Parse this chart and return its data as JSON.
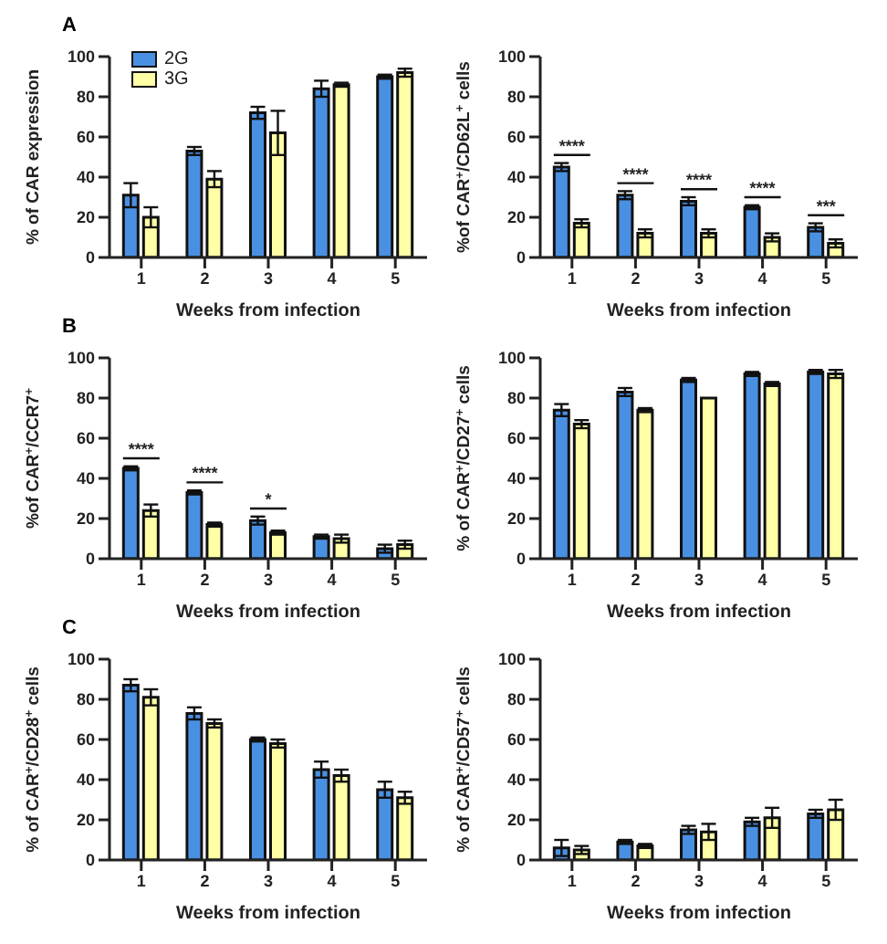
{
  "chart_data": [
    {
      "type": "bar",
      "annotations": [
        "A"
      ],
      "ylabel": "% of CAR expression",
      "xlabel": "Weeks from infection",
      "categories": [
        "1",
        "2",
        "3",
        "4",
        "5"
      ],
      "ylim": [
        0,
        100
      ],
      "yticks": [
        0,
        20,
        40,
        60,
        80,
        100
      ],
      "grid": false,
      "legend": "top left",
      "series": [
        {
          "name": "2G",
          "color": "#4a90e2",
          "values": [
            31,
            53,
            72,
            84,
            90
          ],
          "errors": [
            6,
            2,
            3,
            4,
            1
          ]
        },
        {
          "name": "3G",
          "color": "#ffffa6",
          "values": [
            20,
            39,
            62,
            86,
            92
          ],
          "errors": [
            5,
            4,
            11,
            1,
            2
          ]
        }
      ]
    },
    {
      "type": "bar",
      "annotations": [
        "****",
        "****",
        "****",
        "****",
        "***"
      ],
      "ylabel": "%of CAR$^{+}$/CD62L$^{+}$ cells",
      "xlabel": "Weeks from infection",
      "categories": [
        "1",
        "2",
        "3",
        "4",
        "5"
      ],
      "ylim": [
        0,
        100
      ],
      "yticks": [
        0,
        20,
        40,
        60,
        80,
        100
      ],
      "grid": false,
      "series": [
        {
          "color": "#4a90e2",
          "values": [
            45,
            31,
            28,
            25,
            15
          ],
          "errors": [
            2,
            2,
            2,
            1,
            2
          ]
        },
        {
          "color": "#ffffa6",
          "values": [
            17,
            12,
            12,
            10,
            7
          ],
          "errors": [
            2,
            2,
            2,
            2,
            2
          ]
        }
      ]
    },
    {
      "type": "bar",
      "annotations": [
        "B",
        "****",
        "****",
        "*"
      ],
      "ylabel": "%of CAR$^{+}$/CCR7$^{+}$",
      "xlabel": "Weeks from infection",
      "categories": [
        "1",
        "2",
        "3",
        "4",
        "5"
      ],
      "ylim": [
        0,
        100
      ],
      "yticks": [
        0,
        20,
        40,
        60,
        80,
        100
      ],
      "grid": false,
      "series": [
        {
          "color": "#4a90e2",
          "values": [
            45,
            33,
            19,
            11,
            5
          ],
          "errors": [
            1,
            1,
            2,
            1,
            2
          ]
        },
        {
          "color": "#ffffa6",
          "values": [
            24,
            17,
            13,
            10,
            7
          ],
          "errors": [
            3,
            1,
            1,
            2,
            2
          ]
        }
      ]
    },
    {
      "type": "bar",
      "ylabel": "% of CAR$^{+}$/CD27$^{+}$ cells",
      "xlabel": "Weeks from infection",
      "categories": [
        "1",
        "2",
        "3",
        "4",
        "5"
      ],
      "ylim": [
        0,
        100
      ],
      "yticks": [
        0,
        20,
        40,
        60,
        80,
        100
      ],
      "grid": false,
      "series": [
        {
          "color": "#4a90e2",
          "values": [
            74,
            83,
            89,
            92,
            93
          ],
          "errors": [
            3,
            2,
            1,
            1,
            1
          ]
        },
        {
          "color": "#ffffa6",
          "values": [
            67,
            74,
            80,
            87,
            92
          ],
          "errors": [
            2,
            1,
            null,
            1,
            2
          ]
        }
      ]
    },
    {
      "type": "bar",
      "annotations": [
        "C"
      ],
      "ylabel": "% of CAR$^{+}$/CD28$^{+}$ cells",
      "xlabel": "Weeks from infection",
      "categories": [
        "1",
        "2",
        "3",
        "4",
        "5"
      ],
      "ylim": [
        0,
        100
      ],
      "yticks": [
        0,
        20,
        40,
        60,
        80,
        100
      ],
      "grid": false,
      "series": [
        {
          "color": "#4a90e2",
          "values": [
            87,
            73,
            60,
            45,
            35
          ],
          "errors": [
            3,
            3,
            1,
            4,
            4
          ]
        },
        {
          "color": "#ffffa6",
          "values": [
            81,
            68,
            58,
            42,
            31
          ],
          "errors": [
            4,
            2,
            2,
            3,
            3
          ]
        }
      ]
    },
    {
      "type": "bar",
      "ylabel": "% of CAR$^{+}$/CD57$^{+}$ cells",
      "xlabel": "Weeks from infection",
      "categories": [
        "1",
        "2",
        "3",
        "4",
        "5"
      ],
      "ylim": [
        0,
        100
      ],
      "yticks": [
        0,
        20,
        40,
        60,
        80,
        100
      ],
      "grid": false,
      "series": [
        {
          "color": "#4a90e2",
          "values": [
            6,
            9,
            15,
            19,
            23
          ],
          "errors": [
            4,
            1,
            2,
            2,
            2
          ]
        },
        {
          "color": "#ffffa6",
          "values": [
            5,
            7,
            14,
            21,
            25
          ],
          "errors": [
            2,
            1,
            4,
            5,
            5
          ]
        }
      ]
    }
  ]
}
